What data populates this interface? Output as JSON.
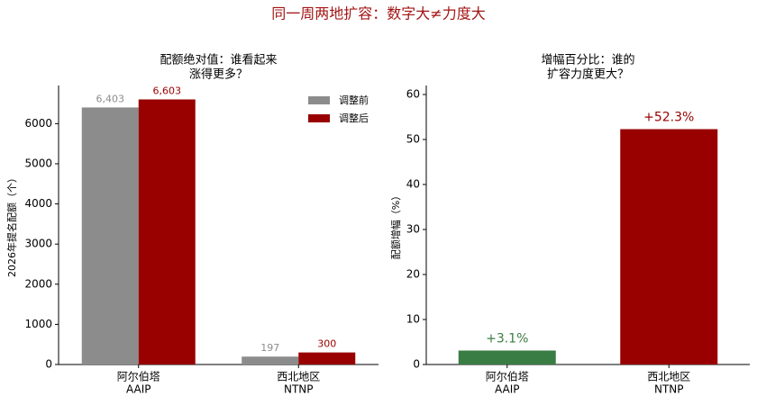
{
  "suptitle": "同一周两地扩容：数字大≠力度大",
  "chart_data": [
    {
      "type": "grouped-bar",
      "title": [
        "配额绝对值：谁看起来",
        "涨得更多？"
      ],
      "ylabel": "2026年提名配额（个）",
      "categories": [
        [
          "阿尔伯塔",
          "AAIP"
        ],
        [
          "西北地区",
          "NTNP"
        ]
      ],
      "series": [
        {
          "name": "调整前",
          "color": "#8c8c8c",
          "values": [
            6403,
            197
          ],
          "value_labels": [
            "6,403",
            "197"
          ]
        },
        {
          "name": "调整后",
          "color": "#990000",
          "values": [
            6603,
            300
          ],
          "value_labels": [
            "6,603",
            "300"
          ]
        }
      ],
      "ylim": [
        0,
        6950
      ],
      "yticks": [
        0,
        1000,
        2000,
        3000,
        4000,
        5000,
        6000
      ],
      "legend": "upper-right"
    },
    {
      "type": "bar",
      "title": [
        "增幅百分比：谁的",
        "扩容力度更大？"
      ],
      "ylabel": "配额增幅（%）",
      "categories": [
        [
          "阿尔伯塔",
          "AAIP"
        ],
        [
          "西北地区",
          "NTNP"
        ]
      ],
      "values": [
        3.1,
        52.3
      ],
      "value_labels": [
        "+3.1%",
        "+52.3%"
      ],
      "colors": [
        "#3a7d44",
        "#990000"
      ],
      "ylim": [
        0,
        62
      ],
      "yticks": [
        0,
        10,
        20,
        30,
        40,
        50,
        60
      ]
    }
  ]
}
